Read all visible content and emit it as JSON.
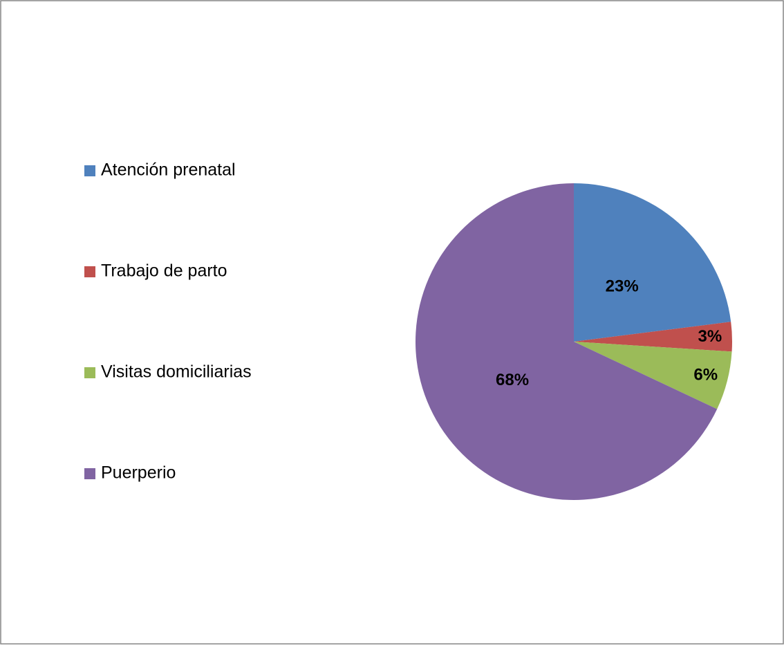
{
  "chart_data": {
    "type": "pie",
    "categories": [
      "Atención prenatal",
      "Trabajo de parto",
      "Visitas domiciliarias",
      "Puerperio"
    ],
    "values": [
      23,
      3,
      6,
      68
    ],
    "value_labels": [
      "23%",
      "3%",
      "6%",
      "68%"
    ],
    "colors": [
      "#4f81bd",
      "#c0504d",
      "#9bbb59",
      "#8064a2"
    ],
    "legend": "left"
  }
}
